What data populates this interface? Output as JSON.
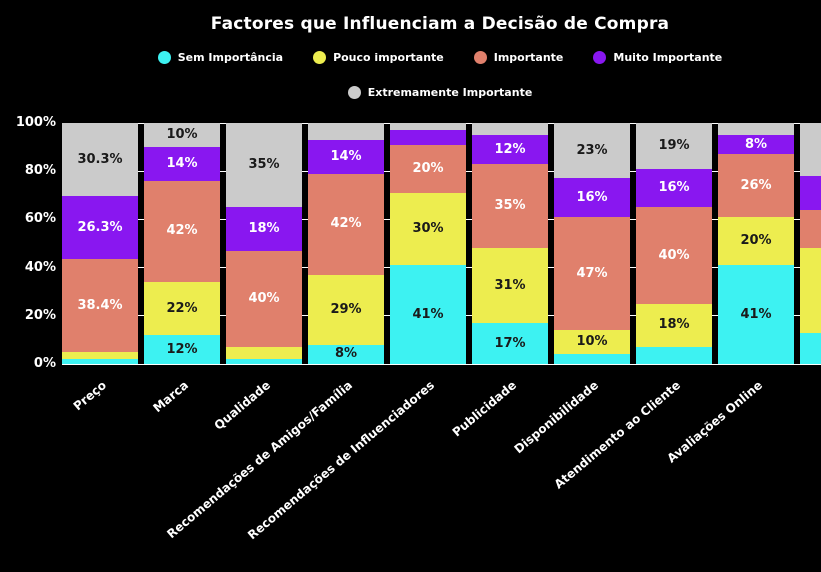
{
  "title": "Factores que Influenciam a Decisão de Compra",
  "colors": {
    "background": "#000000",
    "text": "#ffffff",
    "dark_label": "#1a1a1a",
    "gridline": "#ffffff"
  },
  "chart_data": {
    "type": "bar",
    "stacked": true,
    "normalized_percent": true,
    "title": "Factores que Influenciam a Decisão de Compra",
    "xlabel": "",
    "ylabel": "",
    "ylim": [
      0,
      100
    ],
    "grid": true,
    "legend_position": "top",
    "y_ticks": [
      {
        "value": 0,
        "label": "0%"
      },
      {
        "value": 20,
        "label": "20%"
      },
      {
        "value": 40,
        "label": "40%"
      },
      {
        "value": 60,
        "label": "60%"
      },
      {
        "value": 80,
        "label": "80%"
      },
      {
        "value": 100,
        "label": "100%"
      }
    ],
    "categories": [
      "Preço",
      "Marca",
      "Qualidade",
      "Recomendações de Amigos/Família",
      "Recomendações de Influenciadores",
      "Publicidade",
      "Disponibilidade",
      "Atendimento ao Cliente",
      "Avaliações Online",
      ""
    ],
    "series": [
      {
        "name": "Sem Importância",
        "color": "#3df2f2",
        "label_color": "#1a1a1a",
        "values": [
          2,
          12,
          2,
          8,
          41,
          17,
          4,
          7,
          41,
          13
        ]
      },
      {
        "name": "Pouco importante",
        "color": "#eded4f",
        "label_color": "#1a1a1a",
        "values": [
          3,
          22,
          5,
          29,
          30,
          31,
          10,
          18,
          20,
          35
        ]
      },
      {
        "name": "Importante",
        "color": "#e0806c",
        "label_color": "#ffffff",
        "values": [
          38.4,
          42,
          40,
          42,
          20,
          35,
          47,
          40,
          26,
          16
        ]
      },
      {
        "name": "Muito Importante",
        "color": "#8917f0",
        "label_color": "#ffffff",
        "values": [
          26.3,
          14,
          18,
          14,
          6,
          12,
          16,
          16,
          8,
          14
        ]
      },
      {
        "name": "Extremamente Importante",
        "color": "#cbcbcb",
        "label_color": "#1a1a1a",
        "values": [
          30.3,
          10,
          35,
          7,
          3,
          5,
          23,
          19,
          5,
          22
        ]
      }
    ]
  }
}
